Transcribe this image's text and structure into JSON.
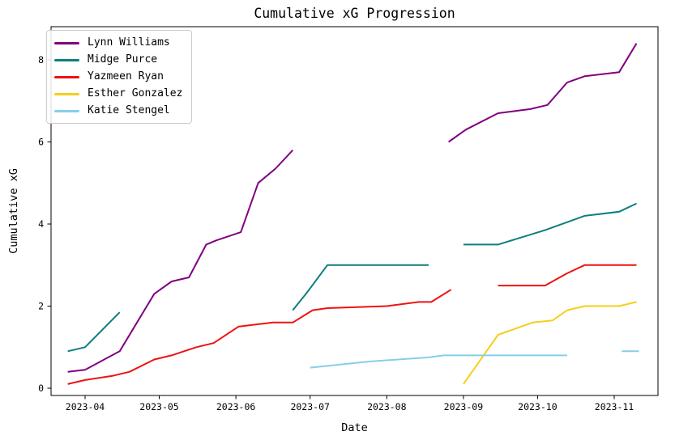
{
  "chart_data": {
    "type": "line",
    "title": "Cumulative xG Progression",
    "xlabel": "Date",
    "ylabel": "Cumulative xG",
    "grid": false,
    "legend_position": "upper left",
    "x_ticks": [
      {
        "label": "2023-04",
        "date": "2023-04-01"
      },
      {
        "label": "2023-05",
        "date": "2023-05-01"
      },
      {
        "label": "2023-06",
        "date": "2023-06-01"
      },
      {
        "label": "2023-07",
        "date": "2023-07-01"
      },
      {
        "label": "2023-08",
        "date": "2023-08-01"
      },
      {
        "label": "2023-09",
        "date": "2023-09-01"
      },
      {
        "label": "2023-10",
        "date": "2023-10-01"
      },
      {
        "label": "2023-11",
        "date": "2023-11-01"
      }
    ],
    "y_ticks": [
      0,
      2,
      4,
      6,
      8
    ],
    "xlim": [
      "2023-03-18",
      "2023-11-19"
    ],
    "ylim": [
      -0.25,
      8.85
    ],
    "series": [
      {
        "name": "Lynn Williams",
        "color": "#800080",
        "segments": [
          [
            [
              "2023-03-25",
              0.4
            ],
            [
              "2023-04-01",
              0.45
            ],
            [
              "2023-04-15",
              0.9
            ],
            [
              "2023-04-29",
              2.3
            ],
            [
              "2023-05-06",
              2.6
            ],
            [
              "2023-05-13",
              2.7
            ],
            [
              "2023-05-20",
              3.5
            ],
            [
              "2023-05-24",
              3.6
            ],
            [
              "2023-06-03",
              3.8
            ],
            [
              "2023-06-10",
              5.0
            ],
            [
              "2023-06-17",
              5.35
            ],
            [
              "2023-06-24",
              5.8
            ]
          ],
          [
            [
              "2023-08-26",
              6.0
            ],
            [
              "2023-09-02",
              6.3
            ],
            [
              "2023-09-15",
              6.7
            ],
            [
              "2023-09-28",
              6.8
            ],
            [
              "2023-10-05",
              6.9
            ],
            [
              "2023-10-13",
              7.45
            ],
            [
              "2023-10-20",
              7.6
            ],
            [
              "2023-11-03",
              7.7
            ],
            [
              "2023-11-10",
              8.4
            ]
          ]
        ]
      },
      {
        "name": "Midge Purce",
        "color": "#0e7e7e",
        "segments": [
          [
            [
              "2023-03-25",
              0.9
            ],
            [
              "2023-04-01",
              1.0
            ],
            [
              "2023-04-15",
              1.85
            ]
          ],
          [
            [
              "2023-06-24",
              1.9
            ],
            [
              "2023-06-30",
              2.35
            ],
            [
              "2023-07-08",
              3.0
            ],
            [
              "2023-08-18",
              3.0
            ]
          ],
          [
            [
              "2023-09-01",
              3.5
            ],
            [
              "2023-09-15",
              3.5
            ],
            [
              "2023-10-04",
              3.85
            ],
            [
              "2023-10-20",
              4.2
            ],
            [
              "2023-11-03",
              4.3
            ],
            [
              "2023-11-10",
              4.5
            ]
          ]
        ]
      },
      {
        "name": "Yazmeen Ryan",
        "color": "#ee1212",
        "segments": [
          [
            [
              "2023-03-25",
              0.1
            ],
            [
              "2023-04-01",
              0.2
            ],
            [
              "2023-04-12",
              0.3
            ],
            [
              "2023-04-19",
              0.4
            ],
            [
              "2023-04-29",
              0.7
            ],
            [
              "2023-05-06",
              0.8
            ],
            [
              "2023-05-11",
              0.9
            ],
            [
              "2023-05-16",
              1.0
            ],
            [
              "2023-05-23",
              1.1
            ],
            [
              "2023-06-02",
              1.5
            ],
            [
              "2023-06-09",
              1.55
            ],
            [
              "2023-06-16",
              1.6
            ],
            [
              "2023-06-24",
              1.6
            ],
            [
              "2023-07-02",
              1.9
            ],
            [
              "2023-07-08",
              1.95
            ],
            [
              "2023-08-01",
              2.0
            ],
            [
              "2023-08-14",
              2.1
            ],
            [
              "2023-08-19",
              2.1
            ],
            [
              "2023-08-27",
              2.4
            ]
          ],
          [
            [
              "2023-09-15",
              2.5
            ],
            [
              "2023-10-04",
              2.5
            ],
            [
              "2023-10-13",
              2.8
            ],
            [
              "2023-10-20",
              3.0
            ],
            [
              "2023-11-10",
              3.0
            ]
          ]
        ]
      },
      {
        "name": "Esther Gonzalez",
        "color": "#f6cf1a",
        "segments": [
          [
            [
              "2023-09-01",
              0.1
            ],
            [
              "2023-09-15",
              1.3
            ],
            [
              "2023-09-29",
              1.6
            ],
            [
              "2023-10-07",
              1.65
            ],
            [
              "2023-10-13",
              1.9
            ],
            [
              "2023-10-20",
              2.0
            ],
            [
              "2023-11-03",
              2.0
            ],
            [
              "2023-11-10",
              2.1
            ]
          ]
        ]
      },
      {
        "name": "Katie Stengel",
        "color": "#87ceeb",
        "segments": [
          [
            [
              "2023-07-01",
              0.5
            ],
            [
              "2023-07-25",
              0.65
            ],
            [
              "2023-08-18",
              0.75
            ],
            [
              "2023-08-24",
              0.8
            ],
            [
              "2023-10-13",
              0.8
            ]
          ],
          [
            [
              "2023-11-04",
              0.9
            ],
            [
              "2023-11-11",
              0.9
            ]
          ]
        ]
      }
    ]
  }
}
